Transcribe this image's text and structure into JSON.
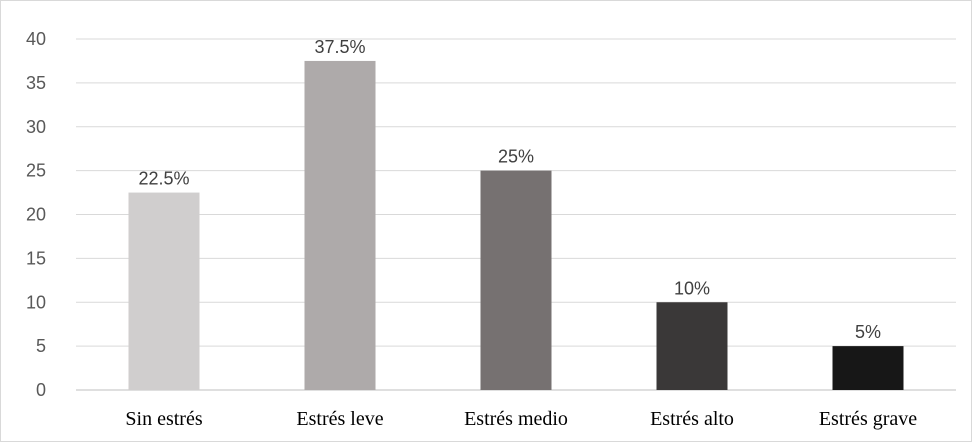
{
  "chart_data": {
    "type": "bar",
    "categories": [
      "Sin estrés",
      "Estrés leve",
      "Estrés medio",
      "Estrés alto",
      "Estrés grave"
    ],
    "values": [
      22.5,
      37.5,
      25,
      10,
      5
    ],
    "data_labels": [
      "22.5%",
      "37.5%",
      "25%",
      "10%",
      "5%"
    ],
    "colors": [
      "#d0cece",
      "#aeaaaa",
      "#767171",
      "#3a3838",
      "#171717"
    ],
    "yticks": [
      0,
      5,
      10,
      15,
      20,
      25,
      30,
      35,
      40
    ],
    "ylim": [
      0,
      40
    ],
    "grid": true,
    "legend": "none",
    "title": "",
    "xlabel": "",
    "ylabel": ""
  }
}
